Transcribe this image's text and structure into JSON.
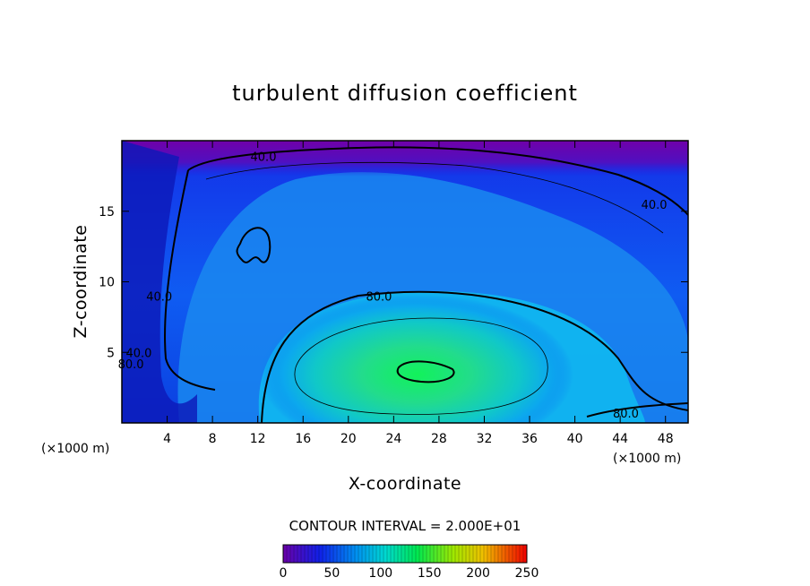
{
  "chart_data": {
    "type": "heatmap",
    "title": "turbulent diffusion coefficient",
    "xlabel": "X-coordinate",
    "ylabel": "Z-coordinate",
    "x_unit": "(×1000 m)",
    "y_unit": "(×1000 m)",
    "xlim": [
      0,
      50
    ],
    "ylim": [
      0,
      20
    ],
    "x_ticks": [
      4,
      8,
      12,
      16,
      20,
      24,
      28,
      32,
      36,
      40,
      44,
      48
    ],
    "y_ticks": [
      5,
      10,
      15
    ],
    "contour_interval_text": "CONTOUR INTERVAL = 2.000E+01",
    "contour_interval": 20,
    "contour_labels": [
      {
        "text": "40.0",
        "x": 12.5,
        "y": 18.9
      },
      {
        "text": "40.0",
        "x": 47.0,
        "y": 15.5
      },
      {
        "text": "80.0",
        "x": 22.7,
        "y": 9.0
      },
      {
        "text": "40.0",
        "x": 3.3,
        "y": 9.0
      },
      {
        "text": "40.0",
        "x": 1.5,
        "y": 5.0
      },
      {
        "text": "80.0",
        "x": 0.8,
        "y": 4.2
      },
      {
        "text": "80.0",
        "x": 44.5,
        "y": 0.7
      }
    ],
    "field_features": [
      {
        "kind": "maximum",
        "x": 26.5,
        "y": 3.5,
        "value": 120
      },
      {
        "kind": "minimum",
        "x": 20.0,
        "y": 19.5,
        "value": 0
      },
      {
        "kind": "local-max",
        "x": 12.0,
        "y": 12.0,
        "value": 60
      }
    ],
    "colorbar": {
      "range": [
        0,
        250
      ],
      "ticks": [
        0,
        50,
        100,
        150,
        200,
        250
      ]
    },
    "colors": {
      "low": "#6a00a8",
      "blue": "#0a2cf0",
      "cyan": "#00b4f0",
      "green": "#00e84a",
      "yellow": "#e8e800",
      "red": "#f00000"
    }
  }
}
